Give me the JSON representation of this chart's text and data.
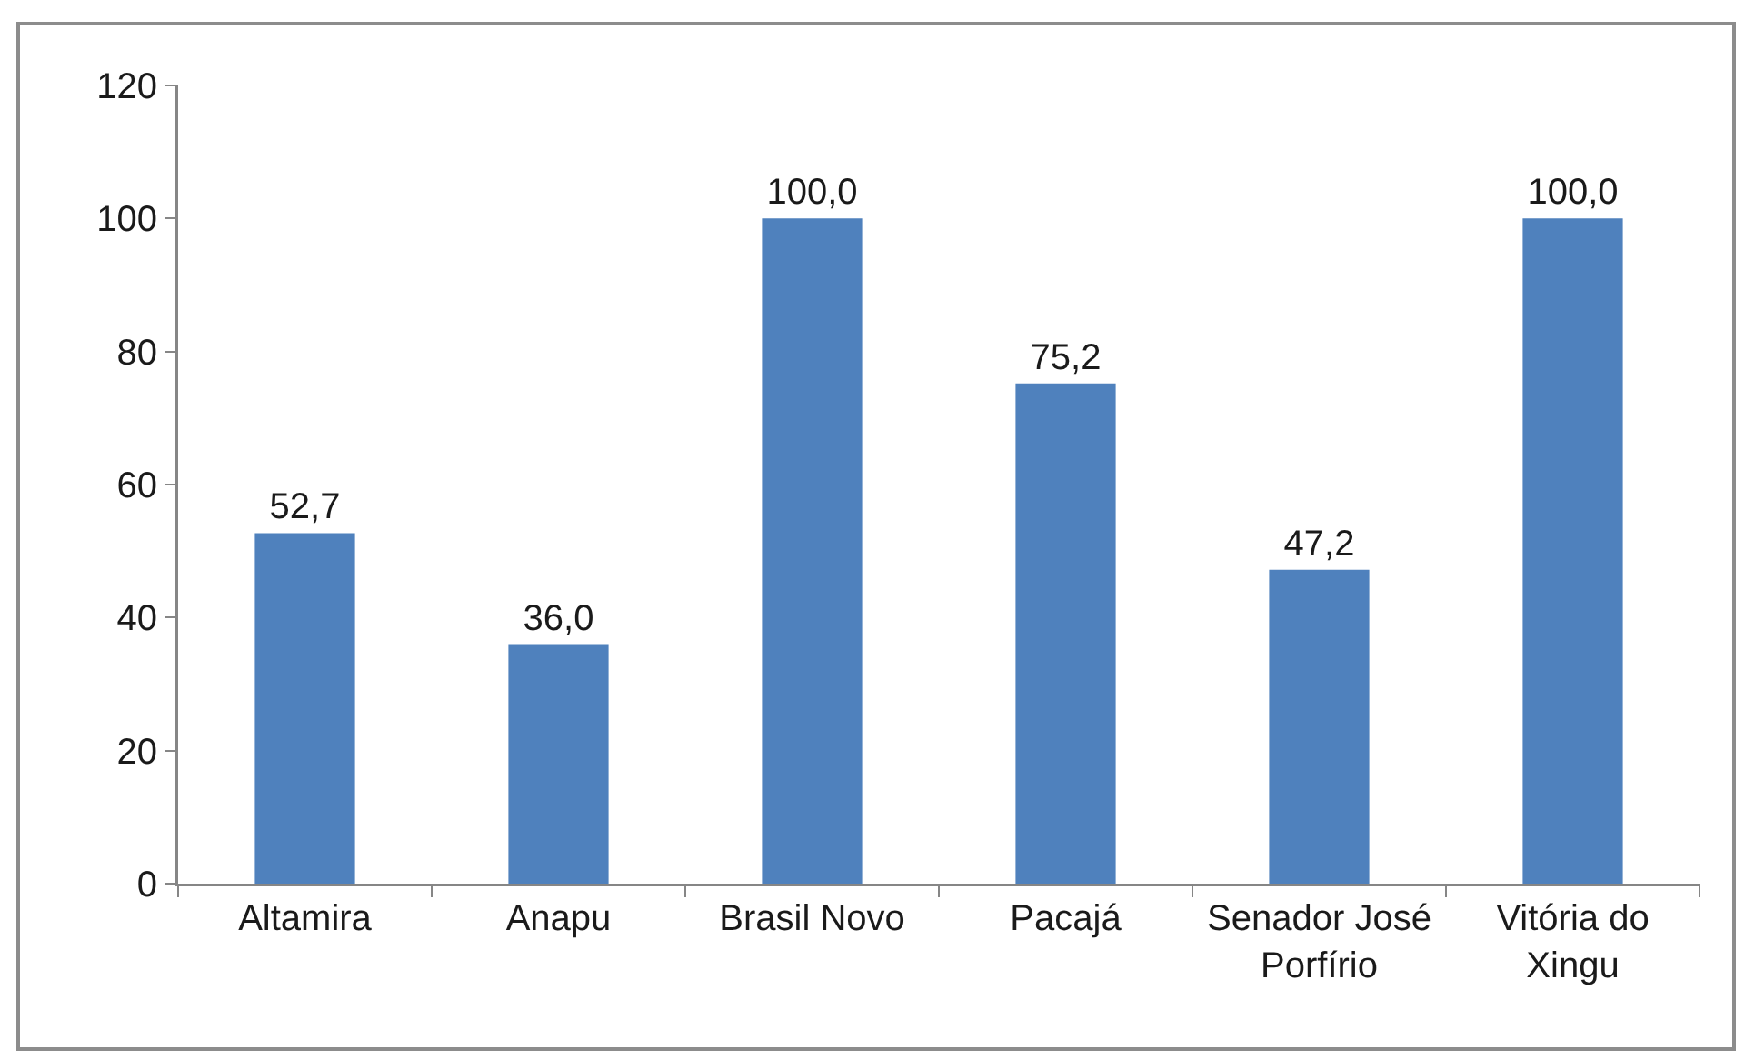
{
  "chart_data": {
    "type": "bar",
    "categories": [
      "Altamira",
      "Anapu",
      "Brasil Novo",
      "Pacajá",
      "Senador José Porfírio",
      "Vitória do Xingu"
    ],
    "values": [
      52.7,
      36.0,
      100.0,
      75.2,
      47.2,
      100.0
    ],
    "value_labels": [
      "52,7",
      "36,0",
      "100,0",
      "75,2",
      "47,2",
      "100,0"
    ],
    "color": "#4f81bd",
    "ylim": [
      0,
      120
    ],
    "yticks": [
      0,
      20,
      40,
      60,
      80,
      100,
      120
    ]
  }
}
